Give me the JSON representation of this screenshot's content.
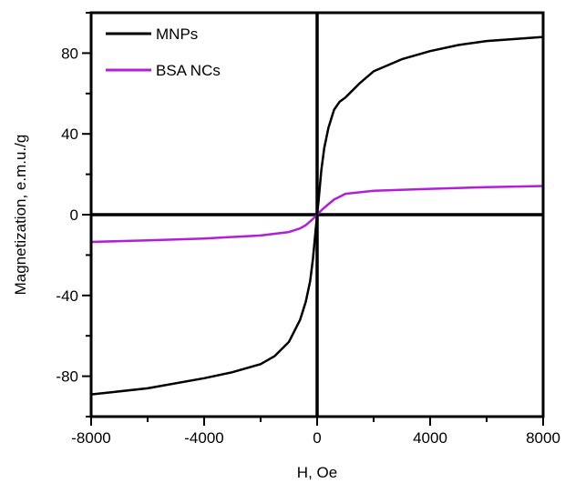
{
  "chart_data": {
    "type": "line",
    "title": "",
    "xlabel": "H, Oe",
    "ylabel": "Magnetization, e.m.u./g",
    "xlim": [
      -8000,
      8000
    ],
    "ylim": [
      -100,
      100
    ],
    "x_ticks": [
      -8000,
      -4000,
      0,
      4000,
      8000
    ],
    "x_tick_labels": [
      "-8000",
      "-4000",
      "0",
      "4000",
      "8000"
    ],
    "y_ticks": [
      -80,
      -40,
      0,
      40,
      80
    ],
    "y_tick_labels": [
      "-80",
      "-40",
      "0",
      "40",
      "80"
    ],
    "grid": false,
    "zero_lines": true,
    "legend_position": "top-left",
    "series": [
      {
        "name": "MNPs",
        "color": "#000000",
        "x": [
          -8000,
          -6000,
          -4000,
          -3000,
          -2000,
          -1500,
          -1000,
          -600,
          -400,
          -250,
          -150,
          -50,
          0,
          50,
          150,
          250,
          400,
          600,
          800,
          1000,
          1500,
          2000,
          3000,
          4000,
          5000,
          6000,
          7000,
          8000
        ],
        "y": [
          -89,
          -86,
          -81,
          -78,
          -74,
          -70,
          -63,
          -52,
          -43,
          -33,
          -22,
          -7,
          0,
          7,
          22,
          33,
          43,
          52,
          56,
          58,
          65,
          71,
          77,
          81,
          84,
          86,
          87,
          88
        ]
      },
      {
        "name": "BSA NCs",
        "color": "#b11fd6",
        "x": [
          -8000,
          -6000,
          -4000,
          -2000,
          -1000,
          -600,
          -400,
          -200,
          -100,
          0,
          100,
          200,
          400,
          600,
          1000,
          2000,
          4000,
          6000,
          8000
        ],
        "y": [
          -13.5,
          -12.7,
          -11.8,
          -10.3,
          -8.6,
          -6.8,
          -5.2,
          -2.8,
          -1.4,
          0,
          1.4,
          2.8,
          5.2,
          7.5,
          10.3,
          11.8,
          12.8,
          13.6,
          14.2
        ]
      }
    ]
  }
}
